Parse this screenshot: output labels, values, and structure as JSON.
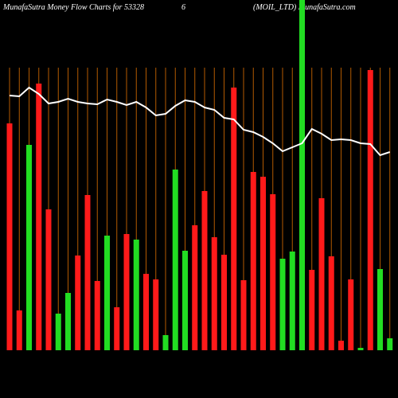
{
  "chart_data": {
    "type": "money-flow",
    "title": "MunafaSutra  Money Flow  Charts for 53328",
    "title_part2": "6",
    "title_part3": "(MOIL_LTD) MunafaSutra.com",
    "ylim": [
      0,
      440
    ],
    "bars": {
      "values": [
        285,
        50,
        258,
        335,
        177,
        46,
        72,
        119,
        195,
        87,
        144,
        54,
        146,
        139,
        96,
        89,
        19,
        227,
        125,
        157,
        200,
        142,
        120,
        330,
        88,
        224,
        218,
        196,
        115,
        124,
        440,
        101,
        191,
        118,
        12,
        89,
        3,
        352,
        102,
        15
      ],
      "colors": [
        "#ff1a1a",
        "#ff1a1a",
        "#22dd22",
        "#ff1a1a",
        "#ff1a1a",
        "#22dd22",
        "#22dd22",
        "#ff1a1a",
        "#ff1a1a",
        "#ff1a1a",
        "#22dd22",
        "#ff1a1a",
        "#ff1a1a",
        "#22dd22",
        "#ff1a1a",
        "#ff1a1a",
        "#22dd22",
        "#22dd22",
        "#22dd22",
        "#ff1a1a",
        "#ff1a1a",
        "#ff1a1a",
        "#ff1a1a",
        "#ff1a1a",
        "#ff1a1a",
        "#ff1a1a",
        "#ff1a1a",
        "#ff1a1a",
        "#22dd22",
        "#22dd22",
        "#22dd22",
        "#ff1a1a",
        "#ff1a1a",
        "#ff1a1a",
        "#ff1a1a",
        "#ff1a1a",
        "#22dd22",
        "#ff1a1a",
        "#22dd22",
        "#22dd22"
      ]
    },
    "line": {
      "color": "#ffffff",
      "values": [
        320,
        319,
        330,
        322,
        310,
        312,
        316,
        312,
        310,
        309,
        315,
        312,
        308,
        312,
        305,
        295,
        297,
        307,
        314,
        312,
        305,
        302,
        292,
        290,
        277,
        274,
        268,
        260,
        250,
        255,
        260,
        278,
        272,
        264,
        265,
        264,
        260,
        259,
        245,
        249
      ]
    }
  }
}
